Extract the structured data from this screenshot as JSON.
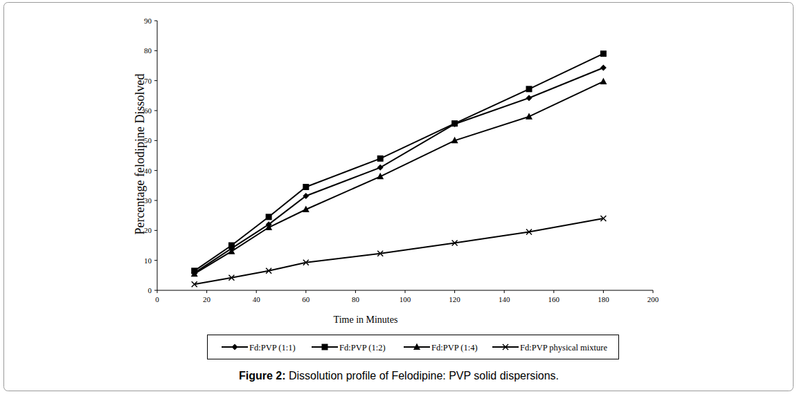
{
  "chart_data": {
    "type": "line",
    "title": "Figure 2: Dissolution profile of Felodipine: PVP solid dispersions.",
    "x_label": "Time in Minutes",
    "y_label": "Percentage felodipine Dissolved",
    "x": [
      15,
      30,
      45,
      60,
      90,
      120,
      150,
      180
    ],
    "series": [
      {
        "name": "Fd:PVP (1:1)",
        "color": "#000000",
        "marker": "diamond",
        "values": [
          5.8,
          14,
          22,
          31.5,
          41,
          55.5,
          64.2,
          74.3
        ]
      },
      {
        "name": "Fd:PVP (1:2)",
        "color": "#000000",
        "marker": "square",
        "values": [
          6.5,
          15,
          24.5,
          34.5,
          44,
          55.7,
          67.2,
          79
        ]
      },
      {
        "name": "Fd:PVP (1:4)",
        "color": "#000000",
        "marker": "triangle",
        "values": [
          5.5,
          13,
          21,
          27,
          38,
          50,
          58,
          69.7
        ]
      },
      {
        "name": "Fd:PVP physical mixture",
        "color": "#000000",
        "marker": "x",
        "values": [
          2,
          4.2,
          6.5,
          9.3,
          12.3,
          15.8,
          19.5,
          24
        ]
      }
    ],
    "xlim": [
      0,
      200
    ],
    "xticks": [
      0,
      20,
      40,
      60,
      80,
      100,
      120,
      140,
      160,
      180,
      200
    ],
    "ylim": [
      0,
      90
    ],
    "yticks": [
      0,
      10,
      20,
      30,
      40,
      50,
      60,
      70,
      80,
      90
    ],
    "grid": false,
    "legend": "bottom"
  }
}
